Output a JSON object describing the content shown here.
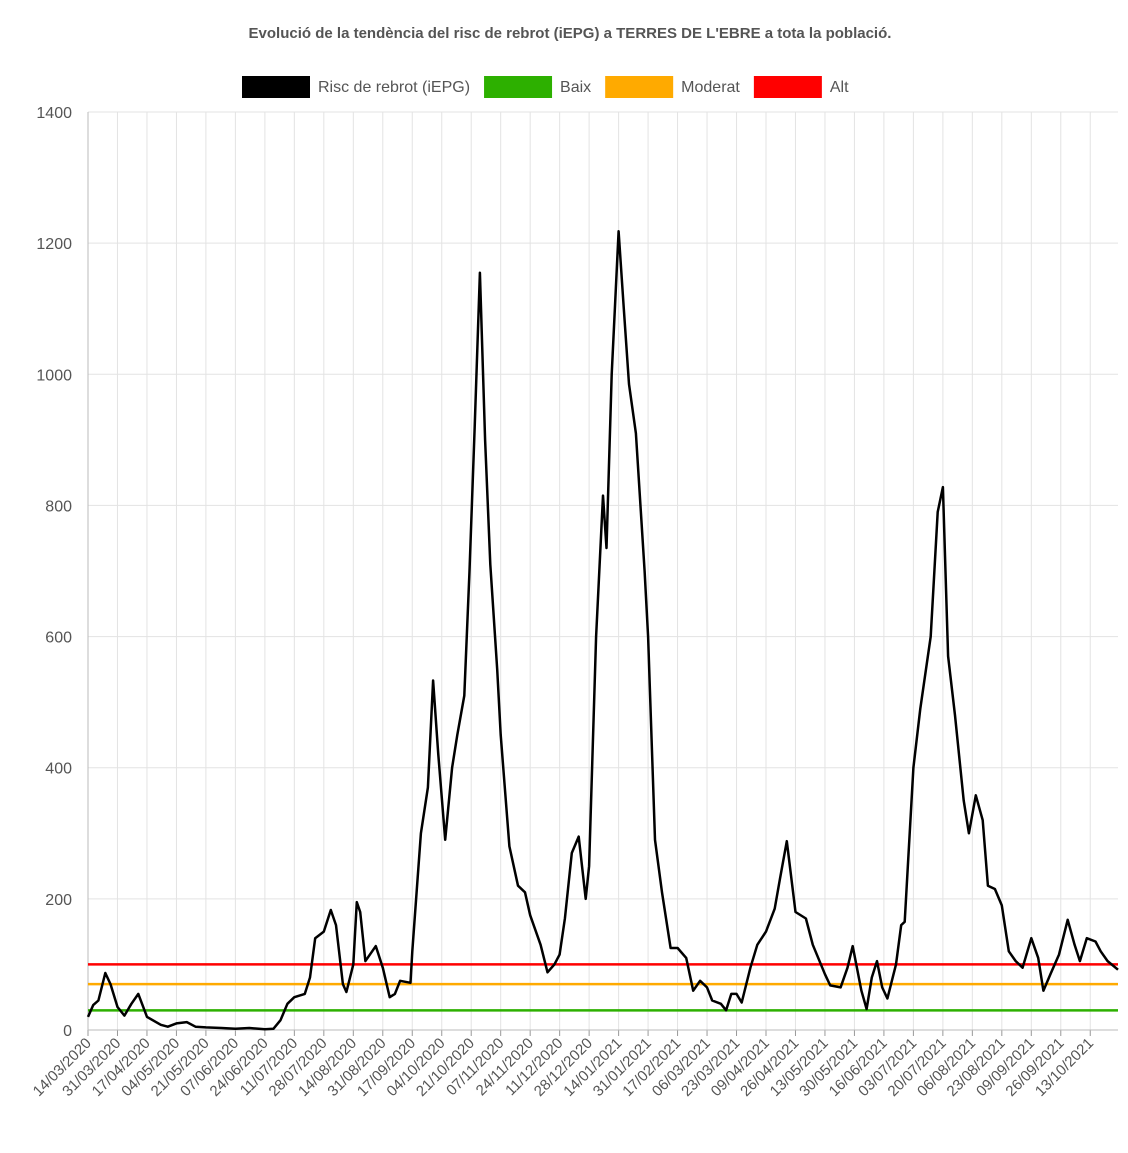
{
  "chart_data": {
    "type": "line",
    "title": "Evolució de la tendència del risc de rebrot (iEPG) a TERRES DE L'EBRE a tota la població.",
    "x": [
      "14/03/2020",
      "17/03/2020",
      "20/03/2020",
      "24/03/2020",
      "27/03/2020",
      "31/03/2020",
      "04/04/2020",
      "08/04/2020",
      "12/04/2020",
      "17/04/2020",
      "25/04/2020",
      "29/04/2020",
      "04/05/2020",
      "10/05/2020",
      "15/05/2020",
      "21/05/2020",
      "30/05/2020",
      "07/06/2020",
      "15/06/2020",
      "24/06/2020",
      "29/06/2020",
      "03/07/2020",
      "07/07/2020",
      "11/07/2020",
      "17/07/2020",
      "20/07/2020",
      "23/07/2020",
      "28/07/2020",
      "01/08/2020",
      "04/08/2020",
      "08/08/2020",
      "10/08/2020",
      "14/08/2020",
      "16/08/2020",
      "18/08/2020",
      "21/08/2020",
      "27/08/2020",
      "31/08/2020",
      "04/09/2020",
      "07/09/2020",
      "10/09/2020",
      "16/09/2020",
      "17/09/2020",
      "22/09/2020",
      "26/09/2020",
      "29/09/2020",
      "02/10/2020",
      "06/10/2020",
      "10/10/2020",
      "13/10/2020",
      "17/10/2020",
      "20/10/2020",
      "23/10/2020",
      "26/10/2020",
      "29/10/2020",
      "01/11/2020",
      "05/11/2020",
      "07/11/2020",
      "12/11/2020",
      "17/11/2020",
      "21/11/2020",
      "24/11/2020",
      "30/11/2020",
      "04/12/2020",
      "08/12/2020",
      "11/12/2020",
      "14/12/2020",
      "18/12/2020",
      "22/12/2020",
      "26/12/2020",
      "28/12/2020",
      "01/01/2021",
      "05/01/2021",
      "07/01/2021",
      "10/01/2021",
      "14/01/2021",
      "17/01/2021",
      "20/01/2021",
      "24/01/2021",
      "29/01/2021",
      "31/01/2021",
      "04/02/2021",
      "08/02/2021",
      "13/02/2021",
      "17/02/2021",
      "22/02/2021",
      "26/02/2021",
      "02/03/2021",
      "06/03/2021",
      "09/03/2021",
      "14/03/2021",
      "17/03/2021",
      "20/03/2021",
      "23/03/2021",
      "26/03/2021",
      "31/03/2021",
      "04/04/2021",
      "09/04/2021",
      "14/04/2021",
      "17/04/2021",
      "21/04/2021",
      "26/04/2021",
      "02/05/2021",
      "06/05/2021",
      "13/05/2021",
      "16/05/2021",
      "22/05/2021",
      "26/05/2021",
      "29/05/2021",
      "03/06/2021",
      "06/06/2021",
      "09/06/2021",
      "12/06/2021",
      "15/06/2021",
      "18/06/2021",
      "23/06/2021",
      "26/06/2021",
      "28/06/2021",
      "03/07/2021",
      "07/07/2021",
      "13/07/2021",
      "17/07/2021",
      "20/07/2021",
      "23/07/2021",
      "27/07/2021",
      "01/08/2021",
      "04/08/2021",
      "08/08/2021",
      "12/08/2021",
      "15/08/2021",
      "19/08/2021",
      "23/08/2021",
      "27/08/2021",
      "31/08/2021",
      "04/09/2021",
      "09/09/2021",
      "13/09/2021",
      "16/09/2021",
      "20/09/2021",
      "25/09/2021",
      "30/09/2021",
      "04/10/2021",
      "07/10/2021",
      "11/10/2021",
      "16/10/2021",
      "19/10/2021",
      "23/10/2021",
      "29/10/2021"
    ],
    "series": [
      {
        "name": "Risc de rebrot (iEPG)",
        "color": "#000000",
        "values": [
          20,
          38,
          45,
          87,
          70,
          35,
          22,
          40,
          55,
          20,
          8,
          5,
          10,
          12,
          5,
          4,
          3,
          2,
          3,
          1,
          2,
          15,
          40,
          50,
          55,
          80,
          140,
          150,
          183,
          160,
          70,
          58,
          100,
          195,
          180,
          105,
          128,
          95,
          50,
          55,
          75,
          72,
          120,
          300,
          370,
          533,
          420,
          290,
          400,
          450,
          510,
          700,
          920,
          1155,
          900,
          710,
          550,
          450,
          280,
          220,
          210,
          175,
          130,
          88,
          100,
          115,
          170,
          270,
          295,
          200,
          250,
          600,
          815,
          735,
          1000,
          1218,
          1100,
          985,
          910,
          700,
          600,
          290,
          210,
          125,
          125,
          110,
          60,
          75,
          65,
          45,
          40,
          30,
          55,
          55,
          42,
          95,
          130,
          150,
          185,
          230,
          288,
          180,
          170,
          130,
          85,
          68,
          65,
          95,
          128,
          60,
          32,
          80,
          105,
          65,
          48,
          100,
          160,
          165,
          400,
          490,
          600,
          790,
          828,
          570,
          480,
          350,
          300,
          358,
          320,
          220,
          215,
          190,
          120,
          105,
          95,
          140,
          110,
          60,
          85,
          115,
          168,
          130,
          105,
          140,
          135,
          120,
          105,
          92
        ]
      }
    ],
    "reference_lines": [
      {
        "name": "Baix",
        "color": "#2db000",
        "value": 30
      },
      {
        "name": "Moderat",
        "color": "#ffaa00",
        "value": 70
      },
      {
        "name": "Alt",
        "color": "#ff0000",
        "value": 100
      }
    ],
    "xlim": [
      "14/03/2020",
      "29/10/2021"
    ],
    "xticks": [
      "14/03/2020",
      "31/03/2020",
      "17/04/2020",
      "04/05/2020",
      "21/05/2020",
      "07/06/2020",
      "24/06/2020",
      "11/07/2020",
      "28/07/2020",
      "14/08/2020",
      "31/08/2020",
      "17/09/2020",
      "04/10/2020",
      "21/10/2020",
      "07/11/2020",
      "24/11/2020",
      "11/12/2020",
      "28/12/2020",
      "14/01/2021",
      "31/01/2021",
      "17/02/2021",
      "06/03/2021",
      "23/03/2021",
      "09/04/2021",
      "26/04/2021",
      "13/05/2021",
      "30/05/2021",
      "16/06/2021",
      "03/07/2021",
      "20/07/2021",
      "06/08/2021",
      "23/08/2021",
      "09/09/2021",
      "26/09/2021",
      "13/10/2021"
    ],
    "ylim": [
      0,
      1400
    ],
    "yticks": [
      0,
      200,
      400,
      600,
      800,
      1000,
      1200,
      1400
    ],
    "grid": true
  }
}
